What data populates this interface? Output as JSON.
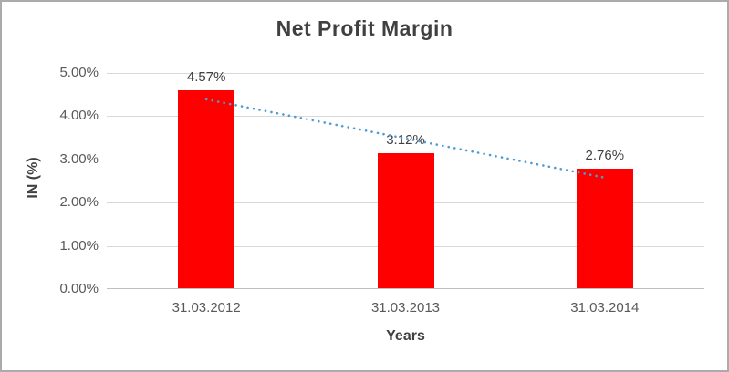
{
  "chart_data": {
    "type": "bar",
    "title": "Net Profit Margin",
    "xlabel": "Years",
    "ylabel": "IN (%)",
    "categories": [
      "31.03.2012",
      "31.03.2013",
      "31.03.2014"
    ],
    "values": [
      4.57,
      3.12,
      2.76
    ],
    "data_labels": [
      "4.57%",
      "3.12%",
      "2.76%"
    ],
    "y_ticks": [
      "0.00%",
      "1.00%",
      "2.00%",
      "3.00%",
      "4.00%",
      "5.00%"
    ],
    "ylim": [
      0,
      5
    ],
    "y_tick_step": 1,
    "grid": true,
    "legend": "none",
    "bar_color": "#ff0000",
    "trendline": {
      "style": "dotted",
      "color": "#4f9bd5",
      "fit": "linear"
    }
  }
}
